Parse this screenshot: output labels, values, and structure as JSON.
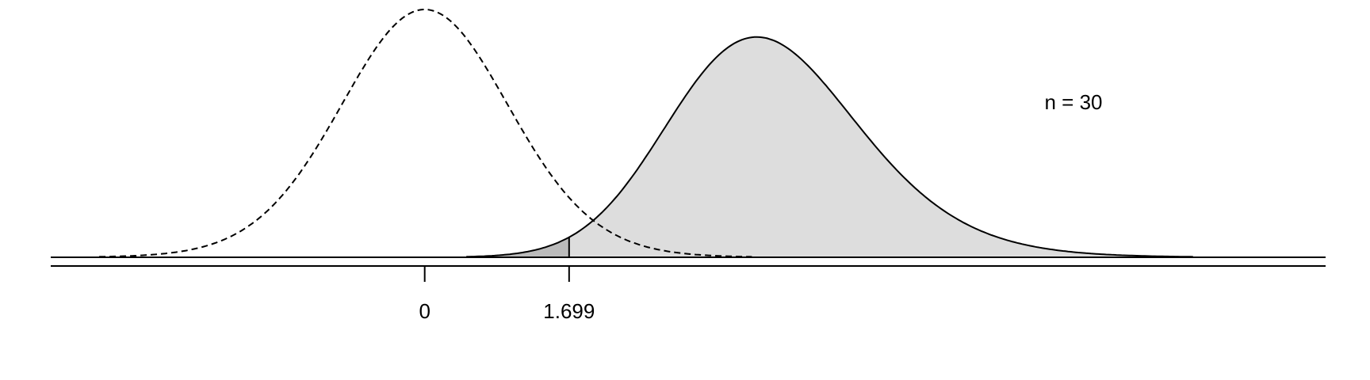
{
  "chart_data": {
    "type": "area",
    "title": "",
    "xlabel": "",
    "ylabel": "",
    "annotation": "n = 30",
    "xlim": [
      -4.4,
      10.6
    ],
    "ticks": [
      {
        "value": 0,
        "label": "0"
      },
      {
        "value": 1.699,
        "label": "1.699"
      }
    ],
    "critical_value": 1.699,
    "series": [
      {
        "distribution": "t",
        "df": 29,
        "ncp": 0,
        "line": "dashed",
        "fill": "none"
      },
      {
        "distribution": "noncentral-t",
        "df": 29,
        "ncp": 4.0,
        "line": "solid",
        "fill": "#dddddd",
        "beta_fill": "#bbbbbb"
      }
    ],
    "grid": false,
    "legend": "none"
  }
}
